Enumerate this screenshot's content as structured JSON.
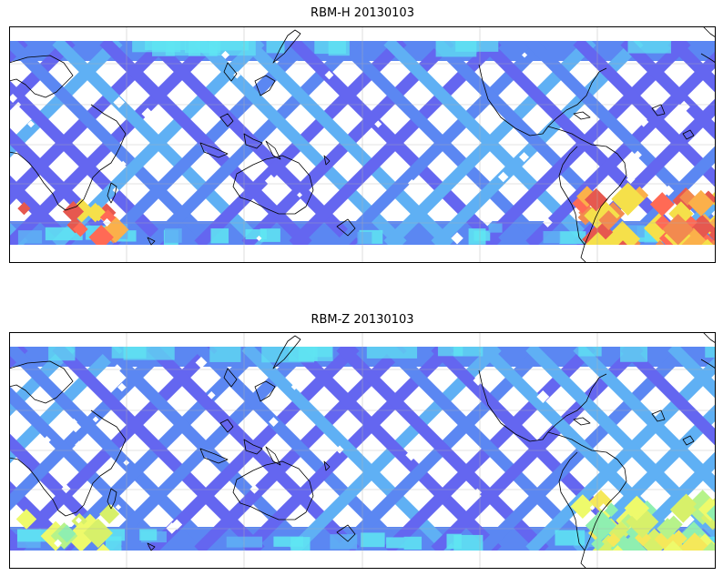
{
  "panels": [
    {
      "title": "RBM-H 20130103",
      "south_colors": [
        "#e6584f",
        "#ff6a55",
        "#f28a4f",
        "#fbb04a",
        "#f5e04a"
      ],
      "south_region": "east"
    },
    {
      "title": "RBM-Z 20130103",
      "south_colors": [
        "#d7f06a",
        "#eefa6b",
        "#b6f38a",
        "#8fefb0",
        "#f5e85a"
      ],
      "south_region": "east"
    }
  ],
  "palette": {
    "track_main": "#6466f0",
    "track_alt": "#5b87f2",
    "track_light": "#5fb0f4",
    "track_cyan": "#5fe6f2",
    "coast": "#000000",
    "grid": "#b0b0b0"
  }
}
